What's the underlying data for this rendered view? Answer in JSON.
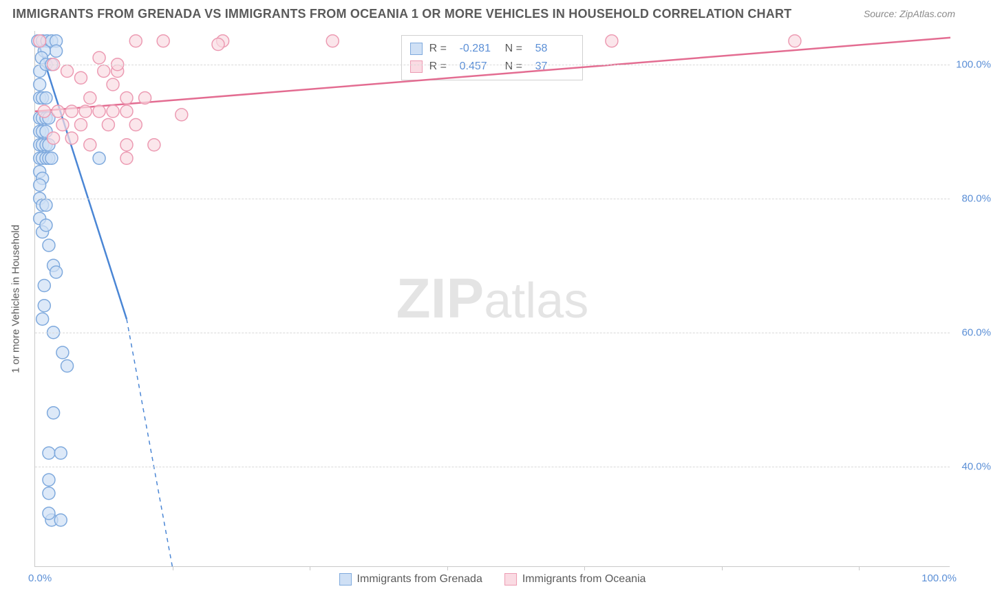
{
  "title": "IMMIGRANTS FROM GRENADA VS IMMIGRANTS FROM OCEANIA 1 OR MORE VEHICLES IN HOUSEHOLD CORRELATION CHART",
  "source": "Source: ZipAtlas.com",
  "watermark": "ZIPatlas",
  "chart": {
    "type": "scatter",
    "xlim": [
      0,
      100
    ],
    "ylim": [
      25,
      105
    ],
    "y_ticks": [
      40,
      60,
      80,
      100
    ],
    "y_tick_labels": [
      "40.0%",
      "60.0%",
      "80.0%",
      "100.0%"
    ],
    "x_tick_left": "0.0%",
    "x_tick_right": "100.0%",
    "x_minor_ticks": [
      15,
      30,
      45,
      60,
      75,
      90
    ],
    "y_axis_title": "1 or more Vehicles in Household",
    "background_color": "#ffffff",
    "grid_color": "#d8d8d8",
    "axis_color": "#c9c9c9",
    "tick_label_color": "#5b8fd6",
    "marker_radius": 9,
    "marker_stroke_width": 1.5,
    "line_width": 2.5,
    "series": [
      {
        "name": "Immigrants from Grenada",
        "color_fill": "#cfe0f5",
        "color_stroke": "#7ea9dd",
        "line_color": "#4a86d5",
        "R": "-0.281",
        "N": "58",
        "trend": {
          "x1": 0.3,
          "y1": 103.5,
          "x2": 10,
          "y2": 62,
          "dash_to_x": 15,
          "dash_to_y": 25
        },
        "points": [
          [
            0.3,
            103.5
          ],
          [
            0.8,
            103.5
          ],
          [
            1.3,
            103.5
          ],
          [
            1.8,
            103.5
          ],
          [
            2.3,
            103.5
          ],
          [
            2.3,
            102
          ],
          [
            1.0,
            102
          ],
          [
            0.5,
            99
          ],
          [
            0.5,
            97
          ],
          [
            0.7,
            101
          ],
          [
            1.2,
            100
          ],
          [
            1.8,
            100
          ],
          [
            0.5,
            95
          ],
          [
            0.8,
            95
          ],
          [
            1.2,
            95
          ],
          [
            0.5,
            92
          ],
          [
            0.8,
            92
          ],
          [
            1.2,
            92
          ],
          [
            1.5,
            92
          ],
          [
            0.5,
            90
          ],
          [
            0.8,
            90
          ],
          [
            1.2,
            90
          ],
          [
            0.5,
            88
          ],
          [
            0.8,
            88
          ],
          [
            1.2,
            88
          ],
          [
            1.5,
            88
          ],
          [
            0.5,
            86
          ],
          [
            0.8,
            86
          ],
          [
            1.2,
            86
          ],
          [
            1.5,
            86
          ],
          [
            1.8,
            86
          ],
          [
            7,
            86
          ],
          [
            0.5,
            84
          ],
          [
            0.8,
            83
          ],
          [
            0.5,
            82
          ],
          [
            0.5,
            80
          ],
          [
            0.8,
            79
          ],
          [
            1.2,
            79
          ],
          [
            0.5,
            77
          ],
          [
            0.8,
            75
          ],
          [
            1.2,
            76
          ],
          [
            1.5,
            73
          ],
          [
            2,
            70
          ],
          [
            2.3,
            69
          ],
          [
            1,
            67
          ],
          [
            1,
            64
          ],
          [
            0.8,
            62
          ],
          [
            2,
            60
          ],
          [
            3,
            57
          ],
          [
            3.5,
            55
          ],
          [
            2,
            48
          ],
          [
            1.5,
            42
          ],
          [
            2.8,
            42
          ],
          [
            1.5,
            38
          ],
          [
            1.5,
            36
          ],
          [
            1.8,
            32
          ],
          [
            2.8,
            32
          ],
          [
            1.5,
            33
          ]
        ]
      },
      {
        "name": "Immigrants from Oceania",
        "color_fill": "#fadbe3",
        "color_stroke": "#ec9ab2",
        "line_color": "#e36c91",
        "R": "0.457",
        "N": "37",
        "trend": {
          "x1": 0,
          "y1": 93,
          "x2": 100,
          "y2": 104
        },
        "points": [
          [
            0.5,
            103.5
          ],
          [
            11,
            103.5
          ],
          [
            14,
            103.5
          ],
          [
            20.5,
            103.5
          ],
          [
            20,
            103
          ],
          [
            32.5,
            103.5
          ],
          [
            63,
            103.5
          ],
          [
            83,
            103.5
          ],
          [
            2,
            100
          ],
          [
            3.5,
            99
          ],
          [
            5,
            98
          ],
          [
            7.5,
            99
          ],
          [
            9,
            99
          ],
          [
            6,
            95
          ],
          [
            8.5,
            97
          ],
          [
            10,
            95
          ],
          [
            12,
            95
          ],
          [
            7,
            101
          ],
          [
            9,
            100
          ],
          [
            1,
            93
          ],
          [
            2.5,
            93
          ],
          [
            4,
            93
          ],
          [
            5.5,
            93
          ],
          [
            7,
            93
          ],
          [
            8.5,
            93
          ],
          [
            10,
            93
          ],
          [
            3,
            91
          ],
          [
            5,
            91
          ],
          [
            8,
            91
          ],
          [
            11,
            91
          ],
          [
            16,
            92.5
          ],
          [
            2,
            89
          ],
          [
            4,
            89
          ],
          [
            6,
            88
          ],
          [
            10,
            88
          ],
          [
            13,
            88
          ],
          [
            10,
            86
          ]
        ]
      }
    ],
    "legend_bottom": [
      {
        "label": "Immigrants from Grenada",
        "fill": "#cfe0f5",
        "stroke": "#7ea9dd"
      },
      {
        "label": "Immigrants from Oceania",
        "fill": "#fadbe3",
        "stroke": "#ec9ab2"
      }
    ],
    "legend_top_rows": [
      {
        "swatch_fill": "#cfe0f5",
        "swatch_stroke": "#7ea9dd",
        "R": "-0.281",
        "N": "58"
      },
      {
        "swatch_fill": "#fadbe3",
        "swatch_stroke": "#ec9ab2",
        "R": "0.457",
        "N": "37"
      }
    ]
  }
}
